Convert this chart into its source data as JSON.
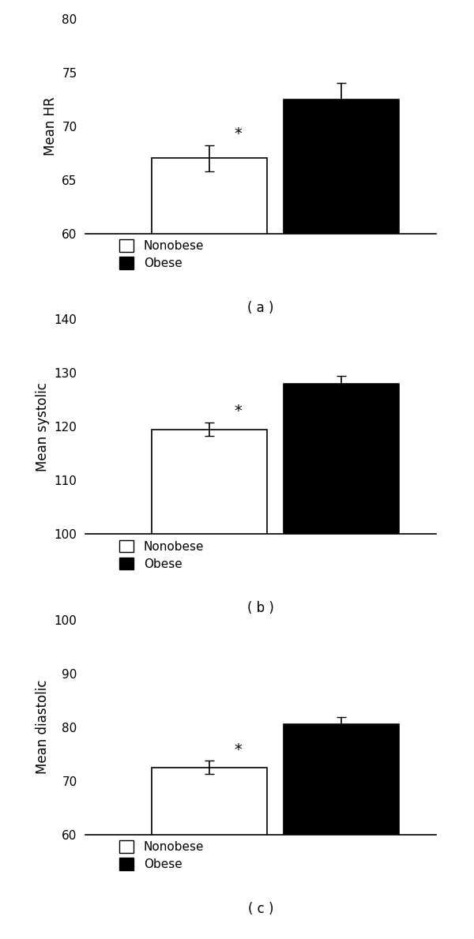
{
  "panels": [
    {
      "ylabel": "Mean HR",
      "ylim": [
        60,
        80
      ],
      "yticks": [
        60,
        65,
        70,
        75,
        80
      ],
      "nonobese_val": 67.0,
      "nonobese_err": 1.2,
      "obese_val": 72.5,
      "obese_err": 1.5,
      "label": "( a )"
    },
    {
      "ylabel": "Mean systolic",
      "ylim": [
        100,
        140
      ],
      "yticks": [
        100,
        110,
        120,
        130,
        140
      ],
      "nonobese_val": 119.5,
      "nonobese_err": 1.3,
      "obese_val": 128.0,
      "obese_err": 1.5,
      "label": "( b )"
    },
    {
      "ylabel": "Mean diastolic",
      "ylim": [
        60,
        100
      ],
      "yticks": [
        60,
        70,
        80,
        90,
        100
      ],
      "nonobese_val": 72.5,
      "nonobese_err": 1.2,
      "obese_val": 80.5,
      "obese_err": 1.3,
      "label": "( c )"
    }
  ],
  "bar_width": 0.28,
  "bar_gap": 0.32,
  "nonobese_color": "#ffffff",
  "obese_color": "#000000",
  "bar_edgecolor": "#000000",
  "legend_labels": [
    "Nonobese",
    "Obese"
  ],
  "asterisk_fontsize": 14,
  "ylabel_fontsize": 12,
  "tick_fontsize": 11,
  "legend_fontsize": 11,
  "label_fontsize": 12,
  "background_color": "#ffffff"
}
